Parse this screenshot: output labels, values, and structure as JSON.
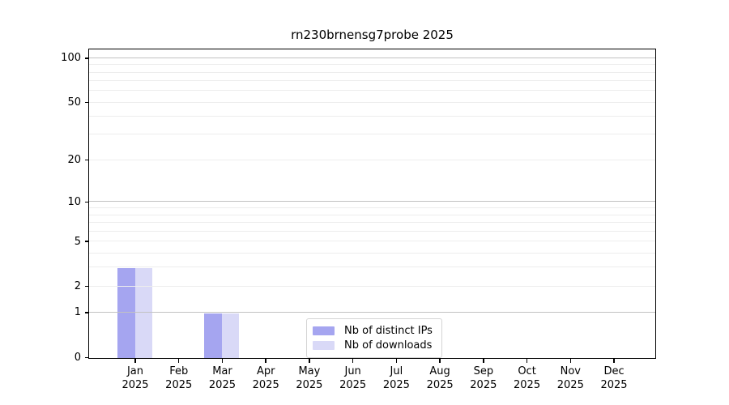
{
  "chart_data": {
    "type": "bar",
    "title": "rn230brnensg7probe 2025",
    "categories": [
      "Jan",
      "Feb",
      "Mar",
      "Apr",
      "May",
      "Jun",
      "Jul",
      "Aug",
      "Sep",
      "Oct",
      "Nov",
      "Dec"
    ],
    "x_tick_year": "2025",
    "series": [
      {
        "name": "Nb of distinct IPs",
        "color": "#a5a5f0",
        "values": [
          3,
          0,
          1,
          0,
          0,
          0,
          0,
          0,
          0,
          0,
          0,
          0
        ]
      },
      {
        "name": "Nb of downloads",
        "color": "#d9d9f7",
        "values": [
          3,
          0,
          1,
          0,
          0,
          0,
          0,
          0,
          0,
          0,
          0,
          0
        ]
      }
    ],
    "y_scale": "log1p",
    "y_axis": {
      "ticks": [
        0,
        1,
        2,
        5,
        10,
        20,
        50,
        100
      ],
      "range": [
        0,
        114
      ],
      "major_gridlines": [
        1,
        10,
        100
      ],
      "minor_gridlines": [
        2,
        3,
        4,
        5,
        6,
        7,
        8,
        9,
        20,
        30,
        40,
        50,
        60,
        70,
        80,
        90
      ],
      "major_grid_color": "#c2c2c2",
      "minor_grid_color": "#ededed"
    },
    "legend_position": "lower center",
    "grid": true
  },
  "colors": {
    "spine": "#000000",
    "background": "#ffffff"
  }
}
